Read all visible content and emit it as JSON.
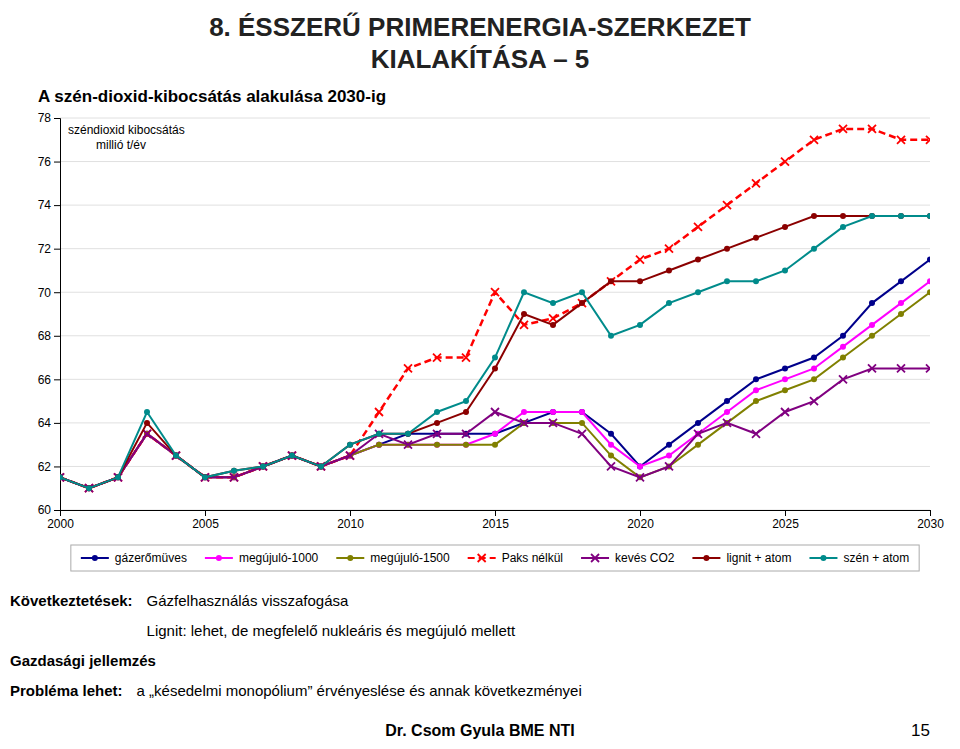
{
  "chart_data": {
    "type": "line",
    "title": [
      "8. ÉSSZERŰ PRIMERENERGIA-SZERKEZET",
      "KIALAKÍTÁSA – 5"
    ],
    "subtitle": "A szén-dioxid-kibocsátás alakulása 2030-ig",
    "y_label": [
      "széndioxid kibocsátás",
      "millió t/év"
    ],
    "x": [
      2000,
      2001,
      2002,
      2003,
      2004,
      2005,
      2006,
      2007,
      2008,
      2009,
      2010,
      2011,
      2012,
      2013,
      2014,
      2015,
      2016,
      2017,
      2018,
      2019,
      2020,
      2021,
      2022,
      2023,
      2024,
      2025,
      2026,
      2027,
      2028,
      2029,
      2030
    ],
    "xlim": [
      2000,
      2030
    ],
    "xticks": [
      2000,
      2005,
      2010,
      2015,
      2020,
      2025,
      2030
    ],
    "ylim": [
      60,
      78
    ],
    "yticks": [
      60,
      62,
      64,
      66,
      68,
      70,
      72,
      74,
      76,
      78
    ],
    "grid": true,
    "legend": "bottom",
    "series": [
      {
        "name": "gázerőmüves",
        "color": "#00008B",
        "marker": "circle",
        "line_style": "solid",
        "values": [
          61.5,
          61.0,
          61.5,
          63.5,
          62.5,
          61.5,
          61.5,
          62.0,
          62.5,
          62.0,
          62.5,
          63.0,
          63.5,
          63.5,
          63.5,
          63.5,
          64.0,
          64.5,
          64.5,
          63.5,
          62.0,
          63.0,
          64.0,
          65.0,
          66.0,
          66.5,
          67.0,
          68.0,
          69.5,
          70.5,
          71.5
        ]
      },
      {
        "name": "megújuló-1000",
        "color": "#FF00FF",
        "marker": "circle",
        "line_style": "solid",
        "values": [
          61.5,
          61.0,
          61.5,
          63.5,
          62.5,
          61.5,
          61.5,
          62.0,
          62.5,
          62.0,
          62.5,
          63.0,
          63.0,
          63.0,
          63.0,
          63.5,
          64.5,
          64.5,
          64.5,
          63.0,
          62.0,
          62.5,
          63.5,
          64.5,
          65.5,
          66.0,
          66.5,
          67.5,
          68.5,
          69.5,
          70.5
        ]
      },
      {
        "name": "megújuló-1500",
        "color": "#808000",
        "marker": "circle",
        "line_style": "solid",
        "values": [
          61.5,
          61.0,
          61.5,
          63.5,
          62.5,
          61.5,
          61.5,
          62.0,
          62.5,
          62.0,
          62.5,
          63.0,
          63.0,
          63.0,
          63.0,
          63.0,
          64.0,
          64.0,
          64.0,
          62.5,
          61.5,
          62.0,
          63.0,
          64.0,
          65.0,
          65.5,
          66.0,
          67.0,
          68.0,
          69.0,
          70.0
        ]
      },
      {
        "name": "Paks nélkül",
        "color": "#FF0000",
        "marker": "x",
        "line_style": "dashed",
        "values": [
          61.5,
          61.0,
          61.5,
          63.5,
          62.5,
          61.5,
          61.5,
          62.0,
          62.5,
          62.0,
          62.5,
          64.5,
          66.5,
          67.0,
          67.0,
          70.0,
          68.5,
          68.8,
          69.5,
          70.5,
          71.5,
          72.0,
          73.0,
          74.0,
          75.0,
          76.0,
          77.0,
          77.5,
          77.5,
          77.0,
          77.0
        ]
      },
      {
        "name": "kevés CO2",
        "color": "#800080",
        "marker": "x",
        "line_style": "solid",
        "values": [
          61.5,
          61.0,
          61.5,
          63.5,
          62.5,
          61.5,
          61.5,
          62.0,
          62.5,
          62.0,
          62.5,
          63.5,
          63.0,
          63.5,
          63.5,
          64.5,
          64.0,
          64.0,
          63.5,
          62.0,
          61.5,
          62.0,
          63.5,
          64.0,
          63.5,
          64.5,
          65.0,
          66.0,
          66.5,
          66.5,
          66.5
        ]
      },
      {
        "name": "lignit + atom",
        "color": "#8B0000",
        "marker": "circle",
        "line_style": "solid",
        "values": [
          61.5,
          61.0,
          61.5,
          64.0,
          62.5,
          61.5,
          61.8,
          62.0,
          62.5,
          62.0,
          63.0,
          63.5,
          63.5,
          64.0,
          64.5,
          66.5,
          69.0,
          68.5,
          69.5,
          70.5,
          70.5,
          71.0,
          71.5,
          72.0,
          72.5,
          73.0,
          73.5,
          73.5,
          73.5,
          73.5,
          73.5
        ]
      },
      {
        "name": "szén + atom",
        "color": "#008B8B",
        "marker": "circle",
        "line_style": "solid",
        "values": [
          61.5,
          61.0,
          61.5,
          64.5,
          62.5,
          61.5,
          61.8,
          62.0,
          62.5,
          62.0,
          63.0,
          63.5,
          63.5,
          64.5,
          65.0,
          67.0,
          70.0,
          69.5,
          70.0,
          68.0,
          68.5,
          69.5,
          70.0,
          70.5,
          70.5,
          71.0,
          72.0,
          73.0,
          73.5,
          73.5,
          73.5
        ]
      }
    ],
    "annotations": [
      "Következtetések:",
      "Gázfelhasználás visszafogása",
      "Lignit: lehet, de megfelelő nukleáris és megújuló mellett",
      "Gazdasági jellemzés",
      "Probléma lehet:",
      "a „késedelmi monopólium” érvényeslése és annak következményei",
      "Dr. Csom Gyula BME NTI",
      "15"
    ]
  }
}
